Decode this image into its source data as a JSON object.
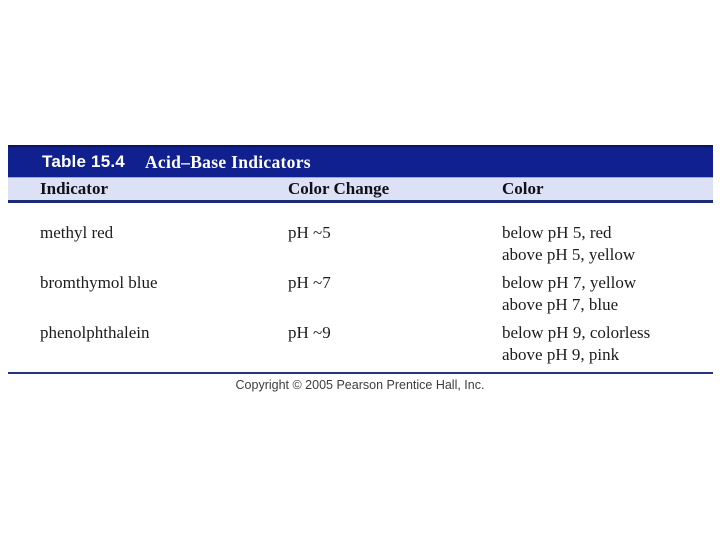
{
  "table": {
    "title_label": "Table 15.4",
    "title": "Acid–Base Indicators",
    "columns": [
      "Indicator",
      "Color Change",
      "Color"
    ],
    "rows": [
      {
        "indicator": "methyl red",
        "color_change": "pH ~5",
        "color_below": "below pH 5, red",
        "color_above": "above pH 5, yellow"
      },
      {
        "indicator": "bromthymol blue",
        "color_change": "pH ~7",
        "color_below": "below pH 7, yellow",
        "color_above": "above pH 7, blue"
      },
      {
        "indicator": "phenolphthalein",
        "color_change": "pH ~9",
        "color_below": "below pH 9, colorless",
        "color_above": "above pH 9, pink"
      }
    ]
  },
  "footer": {
    "copyright": "Copyright © 2005 Pearson Prentice Hall, Inc."
  },
  "colors": {
    "header_blue": "#10208e",
    "header_row_lavender": "#dce1f6",
    "rule_navy": "#1c2b76",
    "body_text": "#1c1c1c",
    "copyright_gray": "#3d3d3d"
  }
}
